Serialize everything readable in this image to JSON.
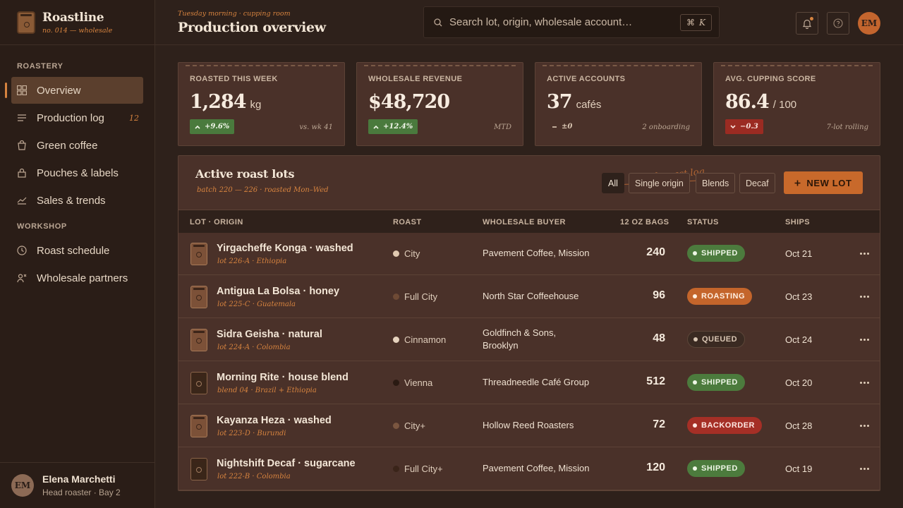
{
  "brand": {
    "name": "Roastline",
    "subtitle": "no. 014 — wholesale"
  },
  "sidebar": {
    "sections": [
      {
        "label": "ROASTERY"
      },
      {
        "label": "WORKSHOP"
      }
    ],
    "items": [
      {
        "label": "Overview",
        "icon": "grid-icon",
        "active": true
      },
      {
        "label": "Production log",
        "icon": "list-icon",
        "badge": "12"
      },
      {
        "label": "Green coffee",
        "icon": "bag-icon"
      },
      {
        "label": "Pouches & labels",
        "icon": "lock-bag-icon"
      },
      {
        "label": "Sales & trends",
        "icon": "chart-icon"
      },
      {
        "label": "Roast schedule",
        "icon": "clock-icon"
      },
      {
        "label": "Wholesale partners",
        "icon": "users-icon"
      }
    ]
  },
  "user": {
    "initials": "EM",
    "name": "Elena Marchetti",
    "role": "Head roaster · Bay 2"
  },
  "header": {
    "eyebrow": "Tuesday morning · cupping room",
    "title": "Production overview",
    "search_placeholder": "Search lot, origin, wholesale account…",
    "shortcut_symbol": "⌘",
    "shortcut_key": "K",
    "avatar_initials": "EM"
  },
  "stats": [
    {
      "label": "ROASTED THIS WEEK",
      "value": "1,284",
      "unit": "kg",
      "delta": "+9.6%",
      "trend": "up",
      "note": "vs. wk 41"
    },
    {
      "label": "WHOLESALE REVENUE",
      "value": "$48,720",
      "unit": "",
      "delta": "+12.4%",
      "trend": "up",
      "note": "MTD"
    },
    {
      "label": "ACTIVE ACCOUNTS",
      "value": "37",
      "unit": "cafés",
      "delta": "±0",
      "trend": "flat",
      "note": "2 onboarding"
    },
    {
      "label": "AVG. CUPPING SCORE",
      "value": "86.4",
      "unit": "/ 100",
      "delta": "−0.3",
      "trend": "down",
      "note": "7-lot rolling"
    }
  ],
  "panel": {
    "title": "Active roast lots",
    "subtitle": "batch 220 — 226 · roasted Mon–Wed",
    "annotation": "fresh roast log",
    "filters": [
      "All",
      "Single origin",
      "Blends",
      "Decaf"
    ],
    "new_lot_label": "NEW LOT",
    "columns": [
      "LOT · ORIGIN",
      "ROAST",
      "WHOLESALE BUYER",
      "12 OZ BAGS",
      "STATUS",
      "SHIPS"
    ],
    "rows": [
      {
        "name": "Yirgacheffe Konga · washed",
        "meta": "lot 226-A · Ethiopia",
        "roast": "City",
        "roast_color": "#e0c9b0",
        "buyer": "Pavement Coffee, Mission",
        "bags": "240",
        "status": "SHIPPED",
        "status_kind": "shipped",
        "ships": "Oct 21",
        "pouch": "light"
      },
      {
        "name": "Antigua La Bolsa · honey",
        "meta": "lot 225-C · Guatemala",
        "roast": "Full City",
        "roast_color": "#6e4a35",
        "buyer": "North Star Coffeehouse",
        "bags": "96",
        "status": "ROASTING",
        "status_kind": "roasting",
        "ships": "Oct 23",
        "pouch": "light"
      },
      {
        "name": "Sidra Geisha · natural",
        "meta": "lot 224-A · Colombia",
        "roast": "Cinnamon",
        "roast_color": "#e6d3be",
        "buyer": "Goldfinch & Sons, Brooklyn",
        "bags": "48",
        "status": "QUEUED",
        "status_kind": "queued",
        "ships": "Oct 24",
        "pouch": "light"
      },
      {
        "name": "Morning Rite · house blend",
        "meta": "blend 04 · Brazil + Ethiopia",
        "roast": "Vienna",
        "roast_color": "#2a1a12",
        "buyer": "Threadneedle Café Group",
        "bags": "512",
        "status": "SHIPPED",
        "status_kind": "shipped",
        "ships": "Oct 20",
        "pouch": "dark"
      },
      {
        "name": "Kayanza Heza · washed",
        "meta": "lot 223-D · Burundi",
        "roast": "City+",
        "roast_color": "#7b5640",
        "buyer": "Hollow Reed Roasters",
        "bags": "72",
        "status": "BACKORDER",
        "status_kind": "backorder",
        "ships": "Oct 28",
        "pouch": "light"
      },
      {
        "name": "Nightshift Decaf · sugarcane",
        "meta": "lot 222-B · Colombia",
        "roast": "Full City+",
        "roast_color": "#3a2419",
        "buyer": "Pavement Coffee, Mission",
        "bags": "120",
        "status": "SHIPPED",
        "status_kind": "shipped",
        "ships": "Oct 19",
        "pouch": "dark"
      }
    ]
  }
}
